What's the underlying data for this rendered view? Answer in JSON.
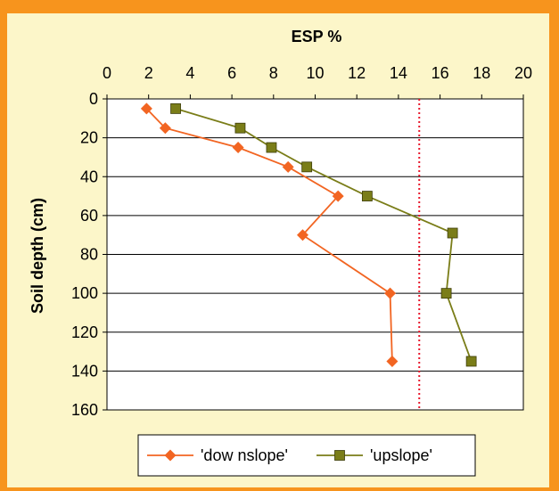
{
  "chart_data": {
    "type": "line",
    "title": "ESP %",
    "xlabel": "ESP %",
    "ylabel": "Soil depth (cm)",
    "xlim": [
      0,
      20
    ],
    "ylim": [
      0,
      160
    ],
    "y_inverted": true,
    "x_axis_position": "top",
    "x_ticks": [
      0,
      2,
      4,
      6,
      8,
      10,
      12,
      14,
      16,
      18,
      20
    ],
    "y_ticks": [
      0,
      20,
      40,
      60,
      80,
      100,
      120,
      140,
      160
    ],
    "x_tick_labels": [
      "0",
      "2",
      "4",
      "6",
      "8",
      "10",
      "12",
      "14",
      "16",
      "18",
      "20"
    ],
    "y_tick_labels": [
      "0",
      "20",
      "40",
      "60",
      "80",
      "100",
      "120",
      "140",
      "160"
    ],
    "grid": "horizontal",
    "legend_position": "bottom",
    "reference_line": {
      "x": 15,
      "color": "#e8172b",
      "style": "dotted"
    },
    "series": [
      {
        "name": "'dow nslope'",
        "color": "#f26522",
        "marker": "diamond",
        "points": [
          {
            "x": 1.9,
            "y": 5
          },
          {
            "x": 2.8,
            "y": 15
          },
          {
            "x": 6.3,
            "y": 25
          },
          {
            "x": 8.7,
            "y": 35
          },
          {
            "x": 11.1,
            "y": 50
          },
          {
            "x": 9.4,
            "y": 70
          },
          {
            "x": 13.6,
            "y": 100
          },
          {
            "x": 13.7,
            "y": 135
          }
        ]
      },
      {
        "name": "'upslope'",
        "color": "#7a7d18",
        "marker": "square",
        "points": [
          {
            "x": 3.3,
            "y": 5
          },
          {
            "x": 6.4,
            "y": 15
          },
          {
            "x": 7.9,
            "y": 25
          },
          {
            "x": 9.6,
            "y": 35
          },
          {
            "x": 12.5,
            "y": 50
          },
          {
            "x": 16.6,
            "y": 69
          },
          {
            "x": 16.3,
            "y": 100
          },
          {
            "x": 17.5,
            "y": 135
          }
        ]
      }
    ]
  }
}
